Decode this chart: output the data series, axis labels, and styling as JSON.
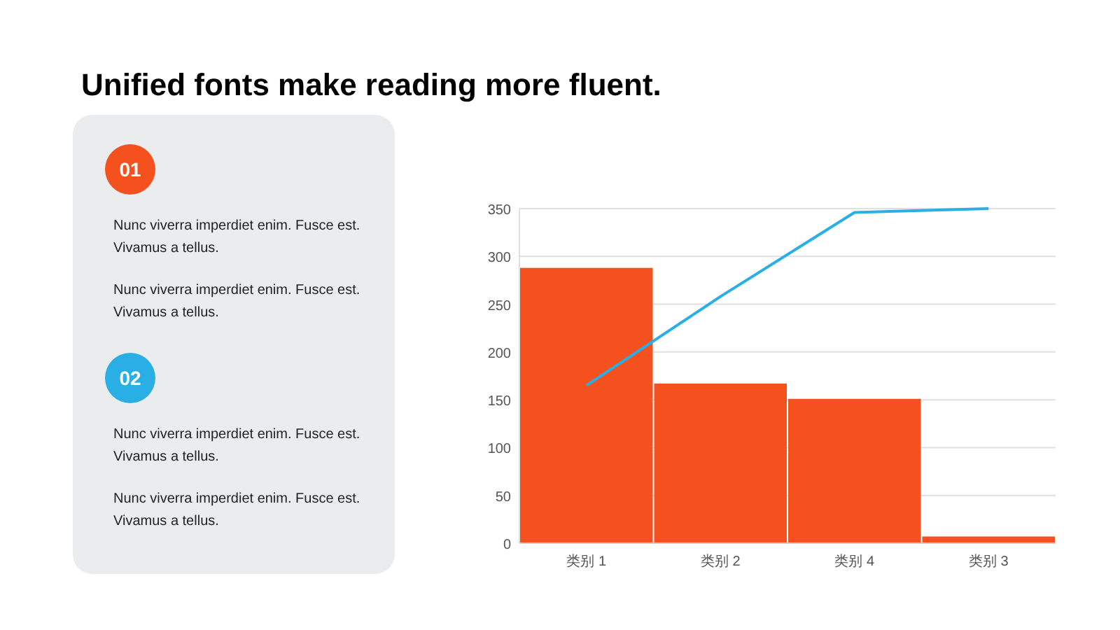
{
  "chart_data": [
    {
      "type": "other",
      "title": "Unified fonts make reading more fluent.",
      "annotations": [
        "01",
        "Nunc viverra  imperdiet enim. Fusce est. Vivamus a tellus.",
        "Nunc viverra  imperdiet enim. Fusce est. Vivamus a tellus.",
        "02",
        "Nunc viverra  imperdiet enim. Fusce est. Vivamus a tellus.",
        "Nunc viverra  imperdiet enim. Fusce est. Vivamus a tellus."
      ]
    },
    {
      "type": "bar",
      "categories": [
        "类别 1",
        "类别 2",
        "类别 4",
        "类别 3"
      ],
      "series": [
        {
          "type": "bar",
          "color": "#f4511e",
          "values": [
            288,
            167,
            151,
            7
          ]
        },
        {
          "type": "line",
          "color": "#29aee6",
          "values": [
            165,
            258,
            346,
            350
          ]
        }
      ],
      "ylim": [
        0,
        350
      ],
      "yticks": [
        0,
        50,
        100,
        150,
        200,
        250,
        300,
        350
      ],
      "grid": "y",
      "marker": "none"
    }
  ]
}
